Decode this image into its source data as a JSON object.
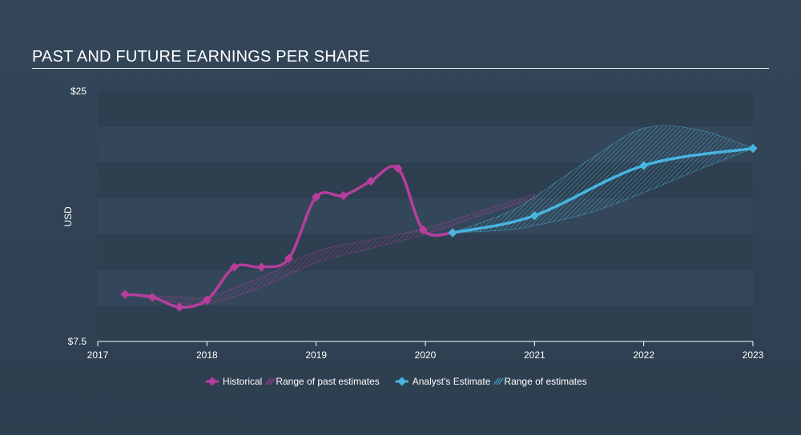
{
  "title": "PAST AND FUTURE EARNINGS PER SHARE",
  "colors": {
    "historical": "#b73e9c",
    "estimate": "#48b5e0",
    "band_dark": "#2e3f4f",
    "band_light": "#34475a"
  },
  "chart_data": {
    "type": "line",
    "title": "PAST AND FUTURE EARNINGS PER SHARE",
    "xlabel": "",
    "ylabel": "USD",
    "ylim": [
      7.5,
      25
    ],
    "xlim": [
      2017,
      2023
    ],
    "y_tick_labels": [
      {
        "value": 25,
        "label": "$25"
      },
      {
        "value": 7.5,
        "label": "$7.5"
      }
    ],
    "x_tick_labels": [
      "2017",
      "2018",
      "2019",
      "2020",
      "2021",
      "2022",
      "2023"
    ],
    "series": [
      {
        "name": "Historical",
        "x": [
          2017.25,
          2017.5,
          2017.75,
          2018.0,
          2018.25,
          2018.5,
          2018.75,
          2019.0,
          2019.25,
          2019.5,
          2019.75,
          2019.98,
          2020.25
        ],
        "y": [
          10.8,
          10.6,
          9.9,
          10.4,
          12.7,
          12.7,
          13.3,
          17.6,
          17.7,
          18.7,
          19.6,
          15.3,
          15.1
        ]
      },
      {
        "name": "Analyst's Estimate",
        "x": [
          2020.25,
          2021.0,
          2022.0,
          2023.0
        ],
        "y": [
          15.1,
          16.3,
          19.8,
          21.0
        ]
      }
    ],
    "range_past": {
      "name": "Range of past estimates",
      "x": [
        2017.25,
        2017.75,
        2018.0,
        2018.5,
        2019.0,
        2019.5,
        2020.0,
        2020.5,
        2021.0
      ],
      "low": [
        10.8,
        10.2,
        10.1,
        11.3,
        13.0,
        14.0,
        15.0,
        16.3,
        17.5
      ],
      "high": [
        10.8,
        10.6,
        10.6,
        12.0,
        13.8,
        14.6,
        15.4,
        16.6,
        17.8
      ]
    },
    "range_future": {
      "name": "Range of estimates",
      "x": [
        2020.25,
        2020.75,
        2021.0,
        2021.5,
        2022.0,
        2022.5,
        2023.0
      ],
      "low": [
        15.1,
        15.3,
        15.6,
        16.5,
        17.9,
        19.5,
        21.0
      ],
      "high": [
        15.1,
        16.5,
        17.6,
        20.2,
        22.4,
        22.3,
        21.0
      ]
    },
    "legend": [
      {
        "name": "Historical",
        "kind": "line"
      },
      {
        "name": "Range of past estimates",
        "kind": "band"
      },
      {
        "name": "Analyst's Estimate",
        "kind": "line"
      },
      {
        "name": "Range of estimates",
        "kind": "band"
      }
    ]
  }
}
